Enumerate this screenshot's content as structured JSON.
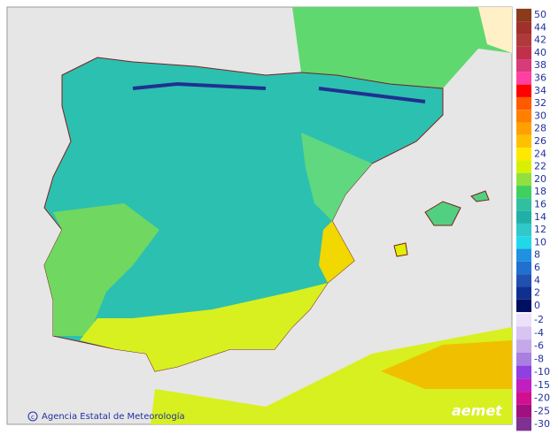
{
  "map": {
    "credit": "Agencia Estatal de Meteorología",
    "logo": "aemet",
    "legend": {
      "positive": [
        {
          "label": 50,
          "color": "#8b3a1a"
        },
        {
          "label": 44,
          "color": "#a0302a"
        },
        {
          "label": 42,
          "color": "#b03a3a"
        },
        {
          "label": 40,
          "color": "#c0304a"
        },
        {
          "label": 38,
          "color": "#d83a7a"
        },
        {
          "label": 36,
          "color": "#ff40a0"
        },
        {
          "label": 34,
          "color": "#ff0000"
        },
        {
          "label": 32,
          "color": "#ff5a00"
        },
        {
          "label": 30,
          "color": "#ff8000"
        },
        {
          "label": 28,
          "color": "#ffa000"
        },
        {
          "label": 26,
          "color": "#ffc000"
        },
        {
          "label": 24,
          "color": "#ffe800"
        },
        {
          "label": 22,
          "color": "#d8f000"
        },
        {
          "label": 20,
          "color": "#90e040"
        },
        {
          "label": 18,
          "color": "#40d060"
        },
        {
          "label": 16,
          "color": "#30c0a0"
        },
        {
          "label": 14,
          "color": "#20b0a8"
        },
        {
          "label": 12,
          "color": "#30c8c8"
        },
        {
          "label": 10,
          "color": "#20d8e8"
        },
        {
          "label": 8,
          "color": "#2090e0"
        },
        {
          "label": 6,
          "color": "#2070d0"
        },
        {
          "label": 4,
          "color": "#2050b0"
        },
        {
          "label": 2,
          "color": "#103090"
        },
        {
          "label": 0,
          "color": "#001060"
        }
      ],
      "negative": [
        {
          "label": -2,
          "color": "#ece0fa"
        },
        {
          "label": -4,
          "color": "#d8c4f2"
        },
        {
          "label": -6,
          "color": "#c4a8ea"
        },
        {
          "label": -8,
          "color": "#a880e0"
        },
        {
          "label": -10,
          "color": "#9040e0"
        },
        {
          "label": -15,
          "color": "#c020c0"
        },
        {
          "label": -20,
          "color": "#d01090"
        },
        {
          "label": -25,
          "color": "#a01080"
        },
        {
          "label": -30,
          "color": "#803090"
        }
      ]
    }
  }
}
